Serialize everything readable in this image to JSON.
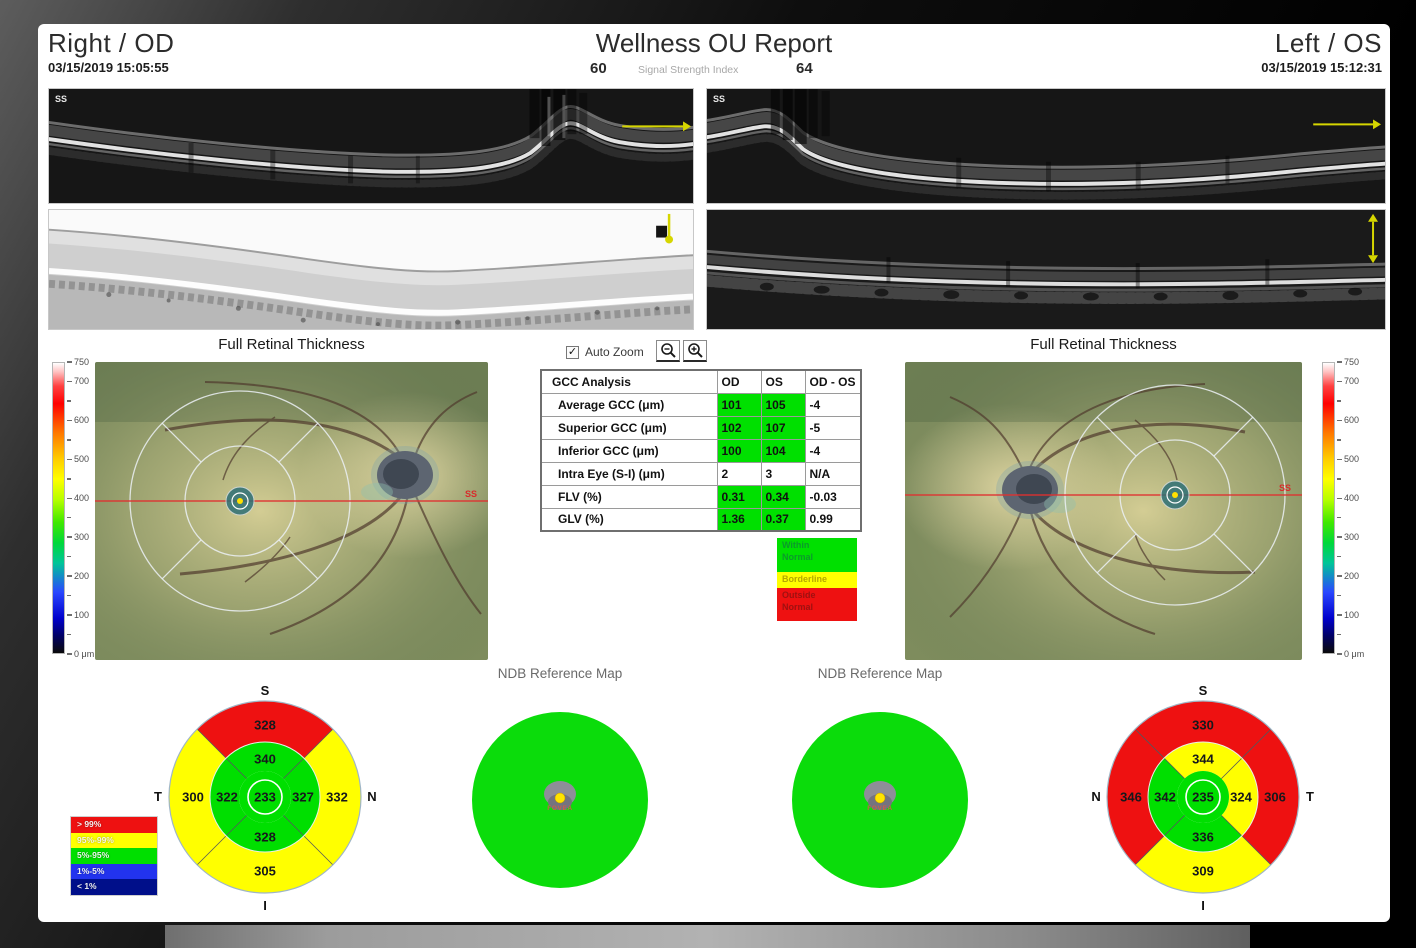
{
  "palette": {
    "red": "#ee1111",
    "yellow": "#ffff00",
    "green": "#00df00"
  },
  "header": {
    "od_title": "Right / OD",
    "od_datetime": "03/15/2019 15:05:55",
    "report_title": "Wellness OU Report",
    "ssi_od": "60",
    "ssi_label": "Signal Strength Index",
    "ssi_os": "64",
    "os_title": "Left / OS",
    "os_datetime": "03/15/2019 15:12:31"
  },
  "scans": {
    "od_horizontal_label": "SS",
    "os_horizontal_label": "SS"
  },
  "thickness": {
    "od_title": "Full Retinal Thickness",
    "os_title": "Full Retinal Thickness",
    "scanline_label": "SS",
    "scale_ticks": [
      {
        "value": 750,
        "label": "750"
      },
      {
        "value": 700,
        "label": "700"
      },
      {
        "value": 600,
        "label": "600"
      },
      {
        "value": 500,
        "label": "500"
      },
      {
        "value": 400,
        "label": "400"
      },
      {
        "value": 300,
        "label": "300"
      },
      {
        "value": 200,
        "label": "200"
      },
      {
        "value": 100,
        "label": "100"
      },
      {
        "value": 0,
        "label": "0 μm"
      }
    ]
  },
  "controls": {
    "auto_zoom_label": "Auto Zoom",
    "auto_zoom_checked": true,
    "check_glyph": "✓"
  },
  "gcc_table": {
    "title": "GCC Analysis",
    "columns": [
      "OD",
      "OS",
      "OD - OS"
    ],
    "rows": [
      {
        "label": "Average GCC (μm)",
        "od": "101",
        "os": "105",
        "diff": "-4",
        "od_status": "normal",
        "os_status": "normal"
      },
      {
        "label": "Superior GCC (μm)",
        "od": "102",
        "os": "107",
        "diff": "-5",
        "od_status": "normal",
        "os_status": "normal"
      },
      {
        "label": "Inferior GCC (μm)",
        "od": "100",
        "os": "104",
        "diff": "-4",
        "od_status": "normal",
        "os_status": "normal"
      },
      {
        "label": "Intra Eye (S-I) (μm)",
        "od": "2",
        "os": "3",
        "diff": "N/A",
        "od_status": "none",
        "os_status": "none"
      },
      {
        "label": "FLV (%)",
        "od": "0.31",
        "os": "0.34",
        "diff": "-0.03",
        "od_status": "normal",
        "os_status": "normal"
      },
      {
        "label": "GLV (%)",
        "od": "1.36",
        "os": "0.37",
        "diff": "0.99",
        "od_status": "normal",
        "os_status": "normal"
      }
    ]
  },
  "status_legend": [
    {
      "label": "Within\nNormal",
      "color": "#00e000",
      "text_color": "#0b9b2a"
    },
    {
      "label": "Borderline",
      "color": "#ffff00",
      "text_color": "#b5a800"
    },
    {
      "label": "Outside\nNormal",
      "color": "#ee1111",
      "text_color": "#9e1111"
    }
  ],
  "sector_charts": {
    "od": {
      "eye": "OD",
      "labels": {
        "top": "S",
        "right": "N",
        "bottom": "I",
        "left": "T"
      },
      "outer": {
        "top": {
          "value": "328",
          "color": "red"
        },
        "right": {
          "value": "332",
          "color": "yellow"
        },
        "bottom": {
          "value": "305",
          "color": "yellow"
        },
        "left": {
          "value": "300",
          "color": "yellow"
        }
      },
      "inner": {
        "top": {
          "value": "340",
          "color": "green"
        },
        "right": {
          "value": "327",
          "color": "green"
        },
        "bottom": {
          "value": "328",
          "color": "green"
        },
        "left": {
          "value": "322",
          "color": "green"
        }
      },
      "center": {
        "value": "233",
        "color": "green"
      }
    },
    "os": {
      "eye": "OS",
      "labels": {
        "top": "S",
        "right": "T",
        "bottom": "I",
        "left": "N"
      },
      "outer": {
        "top": {
          "value": "330",
          "color": "red"
        },
        "right": {
          "value": "306",
          "color": "red"
        },
        "bottom": {
          "value": "309",
          "color": "yellow"
        },
        "left": {
          "value": "346",
          "color": "red"
        }
      },
      "inner": {
        "top": {
          "value": "344",
          "color": "yellow"
        },
        "right": {
          "value": "324",
          "color": "yellow"
        },
        "bottom": {
          "value": "336",
          "color": "green"
        },
        "left": {
          "value": "342",
          "color": "green"
        }
      },
      "center": {
        "value": "235",
        "color": "green"
      }
    }
  },
  "ndb_maps": {
    "od": {
      "title": "NDB Reference Map",
      "fovea_label": "FOVEA"
    },
    "os": {
      "title": "NDB Reference Map",
      "fovea_label": "FOVEA"
    }
  },
  "percentile_legend": [
    {
      "label": "> 99%",
      "color": "#ee1111"
    },
    {
      "label": "95%-99%",
      "color": "#ffff00"
    },
    {
      "label": "5%-95%",
      "color": "#00df00"
    },
    {
      "label": "1%-5%",
      "color": "#2233ee"
    },
    {
      "label": "< 1%",
      "color": "#000f8a"
    }
  ]
}
